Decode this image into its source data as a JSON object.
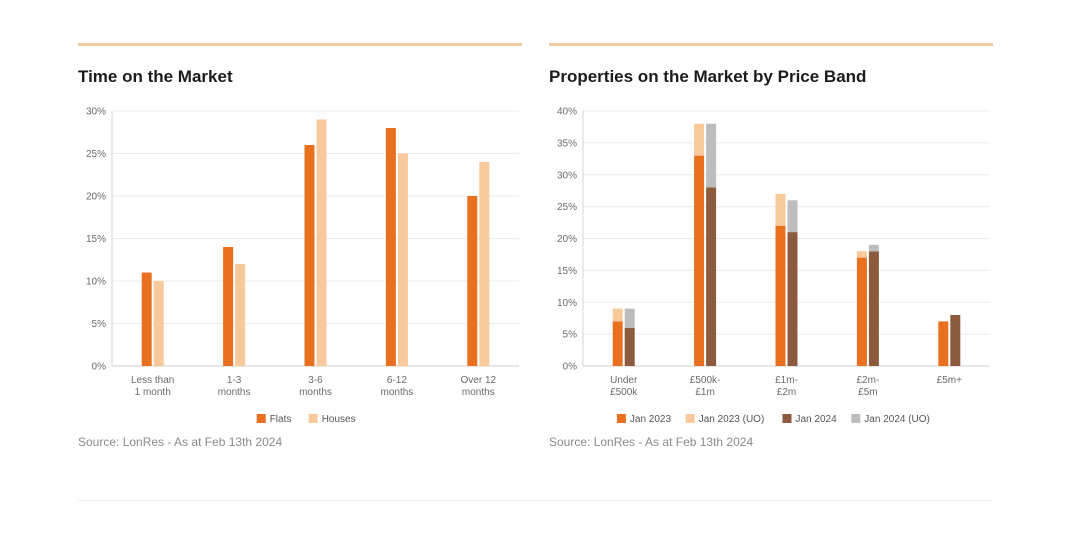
{
  "colors": {
    "flats": "#e8701e",
    "houses": "#f8c99a",
    "jan2023": "#e8701e",
    "jan2023_uo": "#f8c99a",
    "jan2024": "#8c5a3c",
    "jan2024_uo": "#bdbdbd",
    "accent_rule": "#f2c9a0"
  },
  "left": {
    "title": "Time on the Market",
    "source": "Source: LonRes - As at Feb 13th 2024"
  },
  "right": {
    "title": "Properties on the Market by Price Band",
    "source": "Source: LonRes - As at Feb 13th 2024"
  },
  "chart_data": [
    {
      "type": "bar",
      "title": "Time on the Market",
      "categories": [
        [
          "Less than",
          "1 month"
        ],
        [
          "1-3",
          "months"
        ],
        [
          "3-6",
          "months"
        ],
        [
          "6-12",
          "months"
        ],
        [
          "Over 12",
          "months"
        ]
      ],
      "series": [
        {
          "name": "Flats",
          "values": [
            11,
            14,
            26,
            28,
            20
          ]
        },
        {
          "name": "Houses",
          "values": [
            10,
            12,
            29,
            25,
            24
          ]
        }
      ],
      "ylim": [
        0,
        30
      ],
      "yticks": [
        "0%",
        "5%",
        "10%",
        "15%",
        "20%",
        "25%",
        "30%"
      ],
      "grid": true,
      "legend": "bottom-center"
    },
    {
      "type": "bar",
      "stacked": true,
      "title": "Properties on the Market by Price Band",
      "categories": [
        [
          "Under",
          "£500k"
        ],
        [
          "£500k-",
          "£1m"
        ],
        [
          "£1m-",
          "£2m"
        ],
        [
          "£2m-",
          "£5m"
        ],
        [
          "£5m+"
        ]
      ],
      "series": [
        {
          "name": "Jan 2023",
          "stack": "2023",
          "values": [
            7,
            33,
            22,
            17,
            7
          ]
        },
        {
          "name": "Jan 2023 (UO)",
          "stack": "2023",
          "values": [
            2,
            5,
            5,
            1,
            0
          ]
        },
        {
          "name": "Jan 2024",
          "stack": "2024",
          "values": [
            6,
            28,
            21,
            18,
            8
          ]
        },
        {
          "name": "Jan 2024 (UO)",
          "stack": "2024",
          "values": [
            3,
            10,
            5,
            1,
            0
          ]
        }
      ],
      "ylim": [
        0,
        40
      ],
      "yticks": [
        "0%",
        "5%",
        "10%",
        "15%",
        "20%",
        "25%",
        "30%",
        "35%",
        "40%"
      ],
      "grid": true,
      "legend": "bottom-center"
    }
  ]
}
